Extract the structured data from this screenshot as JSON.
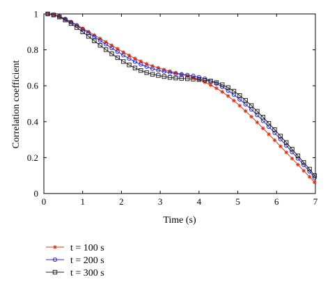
{
  "chart_data": {
    "type": "line",
    "title": "",
    "xlabel": "Time (s)",
    "ylabel": "Correlation coefficient",
    "xlim": [
      0,
      7
    ],
    "ylim": [
      0,
      1
    ],
    "xticks": [
      "0",
      "1",
      "2",
      "3",
      "4",
      "5",
      "6",
      "7"
    ],
    "yticks": [
      "0",
      "0.2",
      "0.4",
      "0.6",
      "0.8",
      "1"
    ],
    "grid": false,
    "legend_position": "bottom-left",
    "x": [
      0.1,
      0.25,
      0.4,
      0.55,
      0.7,
      0.85,
      1.0,
      1.15,
      1.3,
      1.45,
      1.6,
      1.75,
      1.9,
      2.05,
      2.2,
      2.35,
      2.5,
      2.65,
      2.8,
      2.95,
      3.1,
      3.25,
      3.4,
      3.55,
      3.7,
      3.85,
      4.0,
      4.15,
      4.3,
      4.45,
      4.6,
      4.75,
      4.9,
      5.05,
      5.2,
      5.35,
      5.5,
      5.65,
      5.8,
      5.95,
      6.1,
      6.25,
      6.4,
      6.55,
      6.7,
      6.85,
      6.98
    ],
    "series": [
      {
        "name": "t = 100 s",
        "color": "#d9341a",
        "marker": "asterisk",
        "values": [
          1.0,
          0.996,
          0.987,
          0.973,
          0.957,
          0.939,
          0.92,
          0.901,
          0.882,
          0.863,
          0.844,
          0.825,
          0.806,
          0.787,
          0.769,
          0.752,
          0.736,
          0.722,
          0.71,
          0.7,
          0.69,
          0.681,
          0.672,
          0.664,
          0.655,
          0.645,
          0.634,
          0.62,
          0.604,
          0.586,
          0.566,
          0.543,
          0.517,
          0.489,
          0.459,
          0.428,
          0.396,
          0.363,
          0.33,
          0.297,
          0.263,
          0.229,
          0.195,
          0.161,
          0.127,
          0.093,
          0.063
        ]
      },
      {
        "name": "t = 200 s",
        "color": "#2a2ab8",
        "marker": "circle",
        "values": [
          1.0,
          0.995,
          0.986,
          0.971,
          0.954,
          0.935,
          0.915,
          0.894,
          0.873,
          0.852,
          0.831,
          0.81,
          0.79,
          0.77,
          0.751,
          0.734,
          0.719,
          0.706,
          0.695,
          0.686,
          0.679,
          0.673,
          0.668,
          0.664,
          0.66,
          0.655,
          0.648,
          0.639,
          0.627,
          0.612,
          0.594,
          0.573,
          0.55,
          0.524,
          0.497,
          0.468,
          0.437,
          0.405,
          0.372,
          0.338,
          0.303,
          0.267,
          0.231,
          0.195,
          0.159,
          0.123,
          0.088
        ]
      },
      {
        "name": "t = 300 s",
        "color": "#222222",
        "marker": "square",
        "values": [
          1.0,
          0.994,
          0.983,
          0.966,
          0.946,
          0.924,
          0.9,
          0.875,
          0.85,
          0.825,
          0.801,
          0.778,
          0.756,
          0.735,
          0.716,
          0.699,
          0.685,
          0.673,
          0.664,
          0.657,
          0.651,
          0.646,
          0.643,
          0.641,
          0.639,
          0.637,
          0.635,
          0.631,
          0.626,
          0.618,
          0.606,
          0.59,
          0.57,
          0.546,
          0.519,
          0.49,
          0.458,
          0.425,
          0.391,
          0.356,
          0.32,
          0.284,
          0.247,
          0.21,
          0.173,
          0.136,
          0.1
        ]
      }
    ]
  }
}
